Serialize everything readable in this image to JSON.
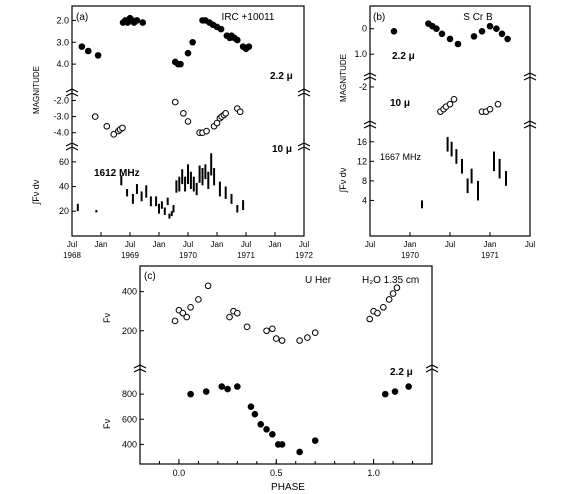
{
  "chart_data": [
    {
      "type": "scatter",
      "panel_label": "(a)",
      "object": "IRC +10011",
      "ylabel_magnitude": "MAGNITUDE",
      "ylabel_flux": "∫Fν dν",
      "x_ticks_month": [
        "Jul",
        "Jan",
        "Jul",
        "Jan",
        "Jul",
        "Jan",
        "Jul",
        "Jan",
        "Jul"
      ],
      "x_ticks_year": [
        "1968",
        "1969",
        "1970",
        "1971",
        "1972"
      ],
      "series": [
        {
          "name": "2.2 μ",
          "marker": "filled",
          "ylim": [
            5.0,
            1.8
          ],
          "yticks": [
            "2.0",
            "3.0",
            "4.0"
          ],
          "x": [
            1968.67,
            1968.78,
            1968.95,
            1969.38,
            1969.42,
            1969.46,
            1969.5,
            1969.54,
            1969.57,
            1969.62,
            1969.72,
            1970.28,
            1970.33,
            1970.37,
            1970.5,
            1970.58,
            1970.75,
            1970.8,
            1970.87,
            1970.93,
            1971.0,
            1971.07,
            1971.17,
            1971.22,
            1971.25,
            1971.3,
            1971.35,
            1971.45,
            1971.5,
            1971.55
          ],
          "y": [
            3.2,
            3.4,
            3.6,
            2.1,
            2.0,
            2.1,
            1.9,
            2.0,
            2.1,
            2.0,
            2.1,
            3.9,
            4.0,
            4.0,
            3.5,
            3.0,
            2.0,
            2.0,
            2.1,
            2.2,
            2.3,
            2.4,
            2.7,
            2.8,
            2.7,
            2.8,
            2.9,
            3.2,
            3.3,
            3.2
          ]
        },
        {
          "name": "10 μ",
          "marker": "open",
          "ylim": [
            -4.7,
            -1.6
          ],
          "yticks": [
            "-4.0",
            "-3.0",
            "-2.0"
          ],
          "x": [
            1968.9,
            1969.1,
            1969.22,
            1969.3,
            1969.33,
            1969.37,
            1970.28,
            1970.42,
            1970.5,
            1970.7,
            1970.75,
            1970.82,
            1970.95,
            1971.0,
            1971.05,
            1971.08,
            1971.12,
            1971.15,
            1971.35,
            1971.4
          ],
          "y": [
            -3.0,
            -3.6,
            -4.1,
            -3.9,
            -3.8,
            -3.7,
            -2.1,
            -2.8,
            -3.3,
            -4.0,
            -4.0,
            -3.9,
            -3.6,
            -3.4,
            -3.1,
            -3.0,
            -2.9,
            -2.8,
            -2.5,
            -2.7
          ]
        },
        {
          "name": "1612 MHz",
          "marker": "bar",
          "ylim": [
            8,
            68
          ],
          "yticks": [
            "20",
            "40",
            "60"
          ],
          "x": [
            1968.6,
            1968.92,
            1969.35,
            1969.45,
            1969.55,
            1969.62,
            1969.7,
            1969.78,
            1969.86,
            1969.95,
            1970.0,
            1970.05,
            1970.1,
            1970.15,
            1970.18,
            1970.22,
            1970.25,
            1970.3,
            1970.35,
            1970.4,
            1970.45,
            1970.5,
            1970.55,
            1970.6,
            1970.65,
            1970.7,
            1970.75,
            1970.8,
            1970.85,
            1970.9,
            1970.95,
            1971.05,
            1971.15,
            1971.25,
            1971.35,
            1971.45
          ],
          "y": [
            23,
            20,
            45,
            35,
            30,
            38,
            32,
            36,
            28,
            28,
            22,
            25,
            20,
            28,
            16,
            18,
            22,
            40,
            42,
            48,
            42,
            50,
            45,
            42,
            38,
            50,
            48,
            52,
            45,
            58,
            48,
            38,
            35,
            30,
            22,
            25
          ],
          "err": [
            3,
            1,
            4,
            3,
            4,
            4,
            4,
            5,
            4,
            4,
            4,
            3,
            3,
            3,
            2,
            2,
            3,
            5,
            6,
            6,
            6,
            8,
            7,
            6,
            5,
            7,
            7,
            6,
            7,
            9,
            7,
            6,
            5,
            4,
            3,
            4
          ]
        }
      ]
    },
    {
      "type": "scatter",
      "panel_label": "(b)",
      "object": "S Cr B",
      "ylabel_magnitude": "MAGNITUDE",
      "ylabel_flux": "∫Fν dν",
      "x_ticks_month": [
        "Jul",
        "Jan",
        "Jul",
        "Jan",
        "Jul"
      ],
      "x_ticks_year": [
        "1970",
        "1971",
        "1972"
      ],
      "series": [
        {
          "name": "2.2 μ",
          "marker": "filled",
          "ylim": [
            1.7,
            -0.5
          ],
          "yticks": [
            "0",
            "1.0"
          ],
          "x": [
            1970.3,
            1970.73,
            1970.78,
            1970.83,
            1970.9,
            1971.0,
            1971.1,
            1971.3,
            1971.4,
            1971.5,
            1971.58,
            1971.65,
            1971.72
          ],
          "y": [
            0.1,
            -0.2,
            -0.1,
            0.0,
            0.2,
            0.4,
            0.6,
            0.3,
            0.1,
            -0.1,
            0.0,
            0.2,
            0.4
          ]
        },
        {
          "name": "10 μ",
          "marker": "open",
          "ylim": [
            -3.5,
            -1.8
          ],
          "yticks": [
            "-2"
          ],
          "x": [
            1970.88,
            1970.92,
            1970.95,
            1971.0,
            1971.05,
            1971.4,
            1971.45,
            1971.5,
            1971.6
          ],
          "y": [
            -3.0,
            -2.9,
            -2.8,
            -2.7,
            -2.5,
            -3.0,
            -3.0,
            -2.9,
            -2.7
          ]
        },
        {
          "name": "1667 MHz",
          "marker": "bar",
          "ylim": [
            0,
            18
          ],
          "yticks": [
            "4",
            "8",
            "12",
            "16"
          ],
          "x": [
            1970.65,
            1970.97,
            1971.02,
            1971.08,
            1971.15,
            1971.22,
            1971.27,
            1971.35,
            1971.55,
            1971.62,
            1971.7
          ],
          "y": [
            3.2,
            15.5,
            14.5,
            13.0,
            11.0,
            7.0,
            9.0,
            6.0,
            12.0,
            10.5,
            8.5
          ],
          "err": [
            0.8,
            1.5,
            1.5,
            1.5,
            1.5,
            1.5,
            1.5,
            2.0,
            2.0,
            2.0,
            1.5
          ]
        }
      ]
    },
    {
      "type": "scatter",
      "panel_label": "(c)",
      "object": "U Her",
      "annotation": "H₂O  1.35 cm",
      "xlabel": "PHASE",
      "ylabel": "Fν",
      "xlim": [
        -0.2,
        1.3
      ],
      "xticks": [
        "0.0",
        "0.5",
        "1.0"
      ],
      "series": [
        {
          "name": "H₂O 1.35 cm",
          "marker": "open",
          "ylim": [
            30,
            480
          ],
          "yticks": [
            "200",
            "400"
          ],
          "x": [
            -0.02,
            0.0,
            0.02,
            0.04,
            0.06,
            0.1,
            0.15,
            0.26,
            0.28,
            0.3,
            0.35,
            0.45,
            0.48,
            0.5,
            0.53,
            0.62,
            0.66,
            0.7,
            0.98,
            1.0,
            1.02,
            1.05,
            1.08,
            1.1,
            1.12
          ],
          "y": [
            250,
            305,
            290,
            270,
            320,
            360,
            430,
            270,
            300,
            290,
            220,
            200,
            210,
            160,
            150,
            150,
            165,
            190,
            260,
            300,
            290,
            320,
            360,
            390,
            420
          ]
        },
        {
          "name": "2.2 μ",
          "marker": "filled",
          "ylim": [
            260,
            960
          ],
          "yticks": [
            "400",
            "600",
            "800"
          ],
          "x": [
            0.06,
            0.14,
            0.22,
            0.25,
            0.3,
            0.37,
            0.39,
            0.42,
            0.45,
            0.48,
            0.51,
            0.53,
            0.62,
            0.7,
            1.06,
            1.11,
            1.18
          ],
          "y": [
            800,
            820,
            860,
            840,
            860,
            700,
            640,
            560,
            520,
            480,
            400,
            400,
            340,
            430,
            800,
            820,
            860
          ]
        }
      ]
    }
  ]
}
